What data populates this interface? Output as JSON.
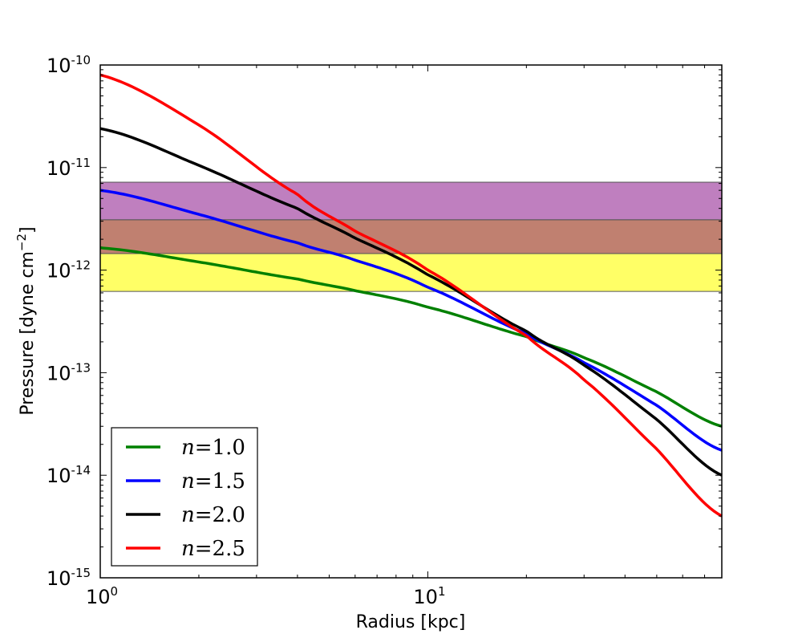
{
  "chart_data": {
    "type": "line",
    "title": "",
    "xlabel": "Radius [kpc]",
    "ylabel_text": "Pressure [dyne cm",
    "ylabel_sup": "−2",
    "ylabel_close": "]",
    "xscale": "log",
    "yscale": "log",
    "xlim": [
      1,
      79
    ],
    "ylim": [
      1e-15,
      1e-10
    ],
    "legend_location": "lower-left",
    "x_ticks": [
      {
        "value": 1,
        "base": "10",
        "exp": "0"
      },
      {
        "value": 10,
        "base": "10",
        "exp": "1"
      }
    ],
    "y_ticks": [
      {
        "value": 1e-10,
        "base": "10",
        "exp": "-10"
      },
      {
        "value": 1e-11,
        "base": "10",
        "exp": "-11"
      },
      {
        "value": 1e-12,
        "base": "10",
        "exp": "-12"
      },
      {
        "value": 1e-13,
        "base": "10",
        "exp": "-13"
      },
      {
        "value": 1e-14,
        "base": "10",
        "exp": "-14"
      },
      {
        "value": 1e-15,
        "base": "10",
        "exp": "-15"
      }
    ],
    "bands": [
      {
        "name": "yellow-band",
        "ymin": 6.2e-13,
        "ymax": 1.45e-12,
        "color": "#ffff66"
      },
      {
        "name": "brown-band",
        "ymin": 1.45e-12,
        "ymax": 3.1e-12,
        "color": "#c08070"
      },
      {
        "name": "purple-band",
        "ymin": 3.1e-12,
        "ymax": 7.2e-12,
        "color": "#bf7fbf"
      }
    ],
    "series": [
      {
        "name": "n = 1.0",
        "label_n": "n",
        "label_eq": "=",
        "label_val": "1.0",
        "color": "#008000",
        "x": [
          1,
          2,
          4,
          6,
          10,
          20,
          30,
          50,
          79
        ],
        "values": [
          1.65e-12,
          1.2e-12,
          8.2e-13,
          6.3e-13,
          4.35e-13,
          2.25e-13,
          1.4e-13,
          6.5e-14,
          3e-14
        ]
      },
      {
        "name": "n = 1.5",
        "label_n": "n",
        "label_eq": "=",
        "label_val": "1.5",
        "color": "#0000ff",
        "x": [
          1,
          2,
          4,
          6,
          10,
          20,
          30,
          50,
          79
        ],
        "values": [
          6e-12,
          3.5e-12,
          1.85e-12,
          1.25e-12,
          6.8e-13,
          2.4e-13,
          1.25e-13,
          4.8e-14,
          1.75e-14
        ]
      },
      {
        "name": "n = 2.0",
        "label_n": "n",
        "label_eq": "=",
        "label_val": "2.0",
        "color": "#000000",
        "x": [
          1,
          2,
          4,
          6,
          10,
          20,
          30,
          50,
          79
        ],
        "values": [
          2.4e-11,
          1.05e-11,
          4e-12,
          2.05e-12,
          9e-13,
          2.55e-13,
          1.18e-13,
          3.5e-14,
          1e-14
        ]
      },
      {
        "name": "n = 2.5",
        "label_n": "n",
        "label_eq": "=",
        "label_val": "2.5",
        "color": "#ff0000",
        "x": [
          1,
          2,
          4,
          6,
          10,
          20,
          30,
          50,
          79
        ],
        "values": [
          8e-11,
          2.6e-11,
          5.5e-12,
          2.4e-12,
          1e-12,
          2.3e-13,
          8.5e-14,
          1.8e-14,
          4e-15
        ]
      }
    ]
  }
}
